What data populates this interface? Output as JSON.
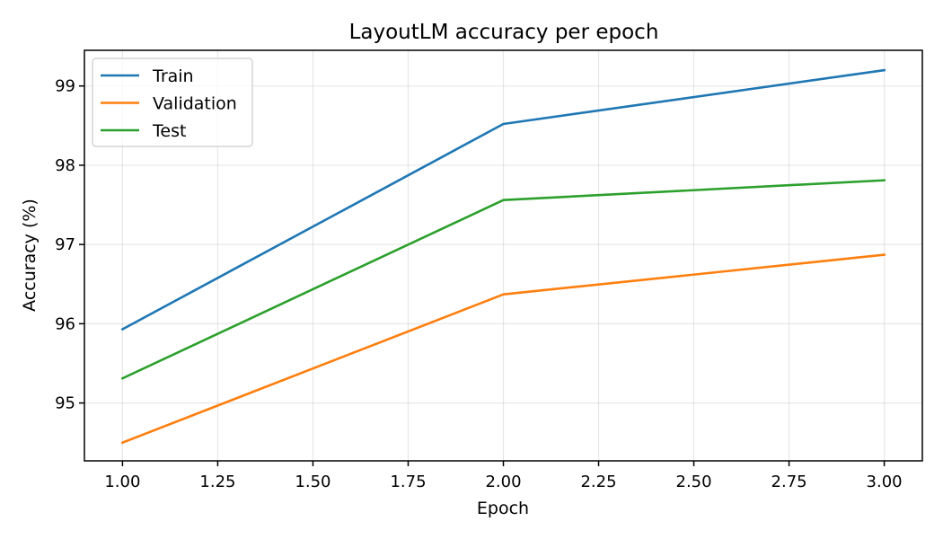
{
  "chart_data": {
    "type": "line",
    "title": "LayoutLM accuracy per epoch",
    "xlabel": "Epoch",
    "ylabel": "Accuracy (%)",
    "x": [
      1.0,
      2.0,
      3.0
    ],
    "xlim": [
      0.9,
      3.1
    ],
    "ylim": [
      94.27,
      99.45
    ],
    "xticks": [
      "1.00",
      "1.25",
      "1.50",
      "1.75",
      "2.00",
      "2.25",
      "2.50",
      "2.75",
      "3.00"
    ],
    "yticks": [
      "95",
      "96",
      "97",
      "98",
      "99"
    ],
    "grid": true,
    "legend_position": "top-left",
    "series": [
      {
        "name": "Train",
        "color": "#1f77b4",
        "values": [
          95.93,
          98.52,
          99.2
        ]
      },
      {
        "name": "Validation",
        "color": "#ff7f0e",
        "values": [
          94.5,
          96.37,
          96.87
        ]
      },
      {
        "name": "Test",
        "color": "#2ca02c",
        "values": [
          95.31,
          97.56,
          97.81
        ]
      }
    ]
  }
}
